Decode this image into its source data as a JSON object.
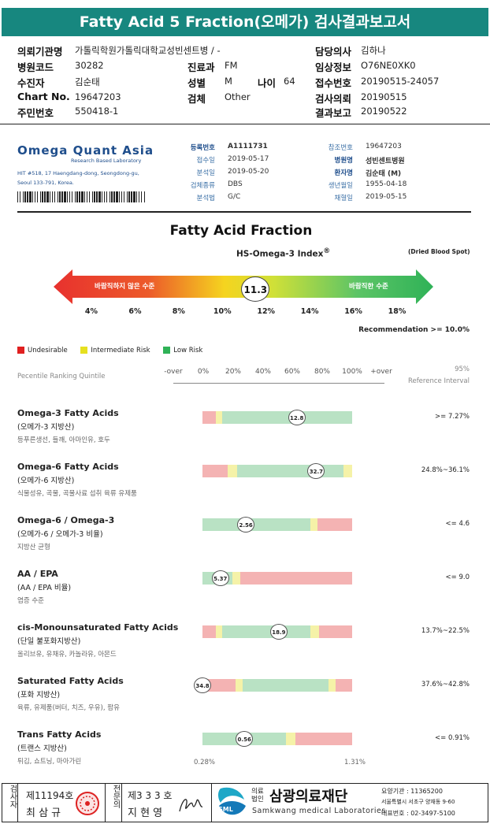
{
  "title": "Fatty Acid 5 Fraction(오메가) 검사결과보고서",
  "header": {
    "institution_label": "의뢰기관명",
    "institution": "가톨릭학원가톨릭대학교성빈센트병 / -",
    "hospital_code_label": "병원코드",
    "hospital_code": "30282",
    "subject_label": "수진자",
    "subject": "김순태",
    "chart_label": "Chart No.",
    "chart": "19647203",
    "resident_label": "주민번호",
    "resident": "550418-1",
    "dept_label": "진료과",
    "dept": "FM",
    "sex_label": "성별",
    "sex": "M",
    "age_label": "나이",
    "age": "64",
    "specimen_label": "검체",
    "specimen": "Other",
    "doctor_label": "담당의사",
    "doctor": "김하나",
    "clinical_label": "임상정보",
    "clinical": "O76NE0XK0",
    "accession_label": "접수번호",
    "accession": "20190515-24057",
    "request_label": "검사의뢰",
    "request": "20190515",
    "report_label": "결과보고",
    "report": "20190522"
  },
  "lab": {
    "logo": "Omega Quant Asia",
    "logo_sub": "Research Based Laboratory",
    "address1": "HIT #518, 17 Haengdang-dong, Seongdong-gu,",
    "address2": "Seoul 133-791, Korea."
  },
  "info": {
    "reg_label": "등록번호",
    "reg": "A1111731",
    "recv_label": "접수일",
    "recv": "2019-05-17",
    "analysis_label": "분석일",
    "analysis": "2019-05-20",
    "specimen_type_label": "검체종류",
    "specimen_type": "DBS",
    "method_label": "분석법",
    "method": "G/C",
    "ref_no_label": "참조번호",
    "ref_no": "19647203",
    "hospital_label": "병원명",
    "hospital": "성빈센트병원",
    "patient_label": "환자명",
    "patient": "김순태 (M)",
    "birth_label": "생년월일",
    "birth": "1955-04-18",
    "collect_label": "채혈일",
    "collect": "2019-05-15"
  },
  "section_title": "Fatty Acid Fraction",
  "index": {
    "title": "HS-Omega-3 Index",
    "sup": "®",
    "dbs": "(Dried Blood Spot)",
    "bad": "바람직하지 않은 수준",
    "good": "바람직한 수준",
    "value": 11.3,
    "value_label": "11.3",
    "ticks": [
      "4%",
      "6%",
      "8%",
      "10%",
      "12%",
      "14%",
      "16%",
      "18%"
    ],
    "recommendation": "Recommendation  >= 10.0%"
  },
  "legend": {
    "undesirable": "Undesirable",
    "intermediate": "Intermediate Risk",
    "low": "Low Risk"
  },
  "colors": {
    "red": "#f4b3b3",
    "yellow": "#f5f2a8",
    "green": "#b9e2c4",
    "teal": "#17877f"
  },
  "percentile": {
    "title": "Pecentile Ranking Quintile",
    "ticks": [
      "-over",
      "0%",
      "20%",
      "40%",
      "60%",
      "80%",
      "100%",
      "+over"
    ],
    "ref_title1": "95%",
    "ref_title2": "Reference Interval"
  },
  "rows": [
    {
      "title": "Omega-3 Fatty Acids",
      "sub": "(오메가-3 지방산)",
      "desc": "등푸른생선, 들깨, 아마인유, 호두",
      "value": "12.8",
      "pos": 0.63,
      "ref": ">= 7.27%",
      "segs": [
        [
          "red",
          0,
          0.09
        ],
        [
          "yellow",
          0.09,
          0.13
        ],
        [
          "green",
          0.13,
          1
        ]
      ]
    },
    {
      "title": "Omega-6 Fatty Acids",
      "sub": "(오메가-6 지방산)",
      "desc": "식물성유, 곡물, 곡물사료 섭취 육류 유제품",
      "value": "32.7",
      "pos": 0.76,
      "ref": "24.8%~36.1%",
      "segs": [
        [
          "red",
          0,
          0.17
        ],
        [
          "yellow",
          0.17,
          0.23
        ],
        [
          "green",
          0.23,
          0.94
        ],
        [
          "yellow",
          0.94,
          1
        ]
      ]
    },
    {
      "title": "Omega-6 / Omega-3",
      "sub": "(오메가-6 / 오메가-3 비율)",
      "desc": "지방산 균형",
      "value": "2.56",
      "pos": 0.29,
      "ref": "<= 4.6",
      "segs": [
        [
          "green",
          0,
          0.72
        ],
        [
          "yellow",
          0.72,
          0.77
        ],
        [
          "red",
          0.77,
          1
        ]
      ]
    },
    {
      "title": "AA / EPA",
      "sub": "(AA / EPA 비율)",
      "desc": "염증 수준",
      "value": "5.37",
      "pos": 0.12,
      "ref": "<= 9.0",
      "segs": [
        [
          "green",
          0,
          0.2
        ],
        [
          "yellow",
          0.2,
          0.25
        ],
        [
          "red",
          0.25,
          1
        ]
      ]
    },
    {
      "title": "cis-Monounsaturated Fatty Acids",
      "sub": "(단일 불포화지방산)",
      "desc": "올리브유, 유채유, 카놀라유, 아몬드",
      "value": "18.9",
      "pos": 0.51,
      "ref": "13.7%~22.5%",
      "segs": [
        [
          "red",
          0,
          0.09
        ],
        [
          "yellow",
          0.09,
          0.13
        ],
        [
          "green",
          0.13,
          0.72
        ],
        [
          "yellow",
          0.72,
          0.78
        ],
        [
          "red",
          0.78,
          1
        ]
      ]
    },
    {
      "title": "Saturated Fatty Acids",
      "sub": "(포화 지방산)",
      "desc": "육류, 유제품(버터, 치즈, 우유), 팜유",
      "value": "34.8",
      "pos": 0.0,
      "ref": "37.6%~42.8%",
      "segs": [
        [
          "red",
          0,
          0.22
        ],
        [
          "yellow",
          0.22,
          0.27
        ],
        [
          "green",
          0.27,
          0.84
        ],
        [
          "yellow",
          0.84,
          0.89
        ],
        [
          "red",
          0.89,
          1
        ]
      ]
    },
    {
      "title": "Trans Fatty Acids",
      "sub": "(트랜스 지방산)",
      "desc": "튀김, 쇼트닝, 마아가린",
      "value": "0.56",
      "pos": 0.28,
      "ref": "<= 0.91%",
      "segs": [
        [
          "green",
          0,
          0.56
        ],
        [
          "yellow",
          0.56,
          0.62
        ],
        [
          "red",
          0.62,
          1
        ]
      ]
    }
  ],
  "trans_range": {
    "min": "0.28%",
    "max": "1.31%"
  },
  "footer": {
    "inspector_label": "검사자",
    "inspector_no": "제11194호",
    "inspector_name": "최 삼 규",
    "expert_label": "전문의",
    "expert_no": "제3 3 3 호",
    "expert_name": "지 현 영",
    "org_prefix": "의료법인",
    "org": "삼광의료재단",
    "org_en": "Samkwang medical Laboratories",
    "code": "요양기관 : 11365200",
    "addr": "서울특별시 서초구 양재동 9-60",
    "tel": "대표번호 : 02-3497-5100",
    "sml": "SML"
  }
}
